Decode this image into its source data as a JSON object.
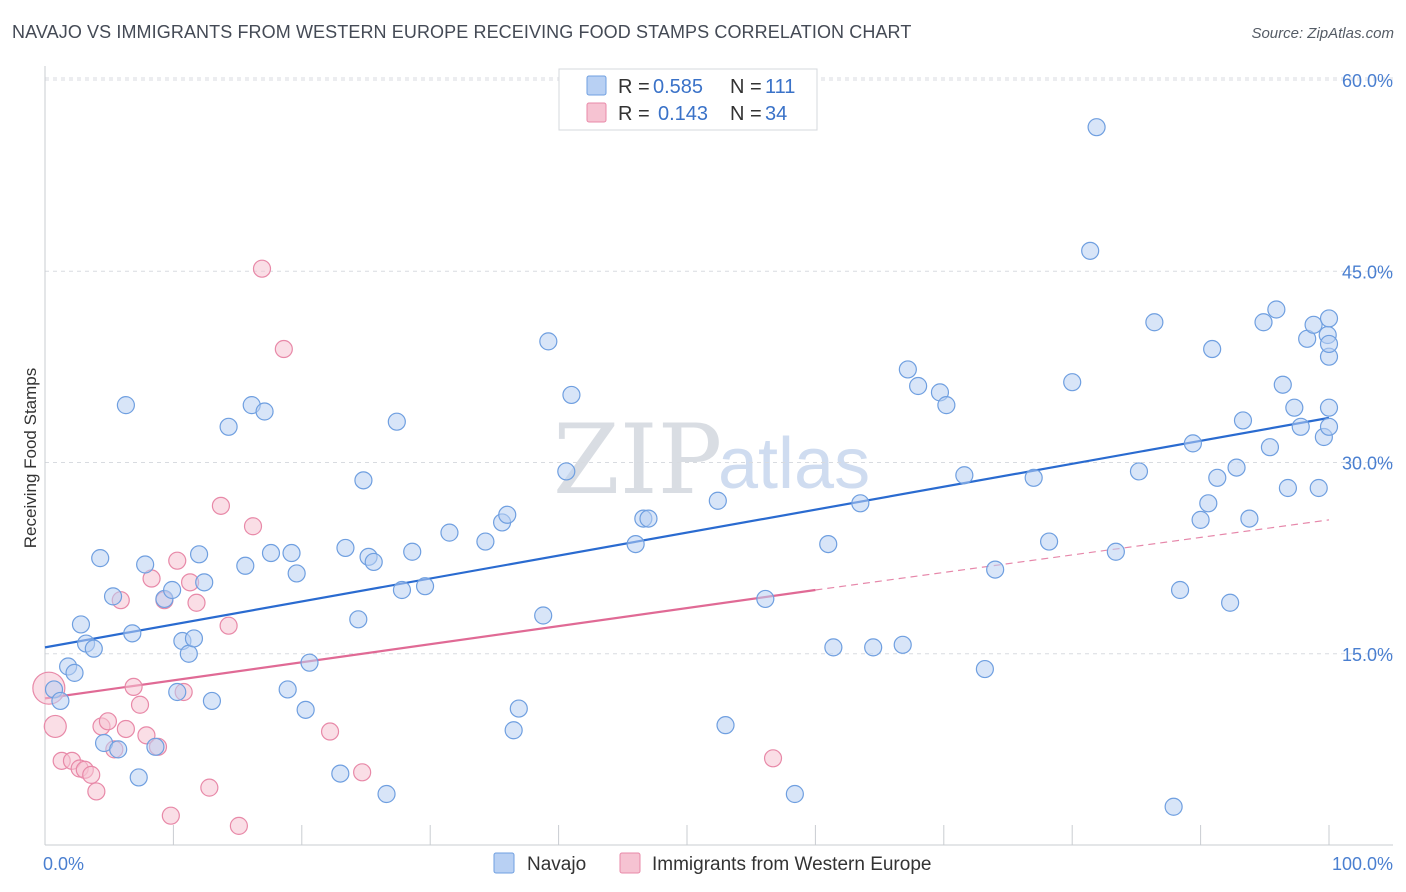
{
  "title": "NAVAJO VS IMMIGRANTS FROM WESTERN EUROPE RECEIVING FOOD STAMPS CORRELATION CHART",
  "source": "Source: ZipAtlas.com",
  "watermark": {
    "part1": "ZIP",
    "part2": "atlas"
  },
  "colors": {
    "navajo_fill": "#b8d0f3",
    "navajo_stroke": "#6f9fe0",
    "navajo_line": "#2a6bd0",
    "immig_fill": "#f6c3d2",
    "immig_stroke": "#e889a8",
    "immig_line": "#e06a95",
    "grid": "#d8dbe0",
    "axis_label": "#4a7fd0"
  },
  "legend": {
    "rows": [
      {
        "r_label": "R = ",
        "r_value": "0.585",
        "n_label": "N = ",
        "n_value": "111"
      },
      {
        "r_label": "R = ",
        "r_value": "0.143",
        "n_label": "N = ",
        "n_value": "34"
      }
    ]
  },
  "chart_data": {
    "type": "scatter",
    "title": "NAVAJO VS IMMIGRANTS FROM WESTERN EUROPE RECEIVING FOOD STAMPS CORRELATION CHART",
    "xlabel": "",
    "ylabel": "Receiving Food Stamps",
    "xlim": [
      0,
      100
    ],
    "ylim": [
      0,
      60
    ],
    "x_tick_labels": [
      "0.0%",
      "100.0%"
    ],
    "y_ticks": [
      15,
      30,
      45,
      60
    ],
    "y_tick_labels": [
      "15.0%",
      "30.0%",
      "45.0%",
      "60.0%"
    ],
    "legend_position": "top-center",
    "series": [
      {
        "name": "Navajo",
        "r": 0.585,
        "n": 111,
        "trend": {
          "x0": 0,
          "y0": 15.5,
          "x1": 100,
          "y1": 33.5
        },
        "points": [
          [
            0.7,
            12.2
          ],
          [
            1.2,
            11.3
          ],
          [
            1.8,
            14.0
          ],
          [
            2.3,
            13.5
          ],
          [
            2.8,
            17.3
          ],
          [
            3.2,
            15.8
          ],
          [
            3.8,
            15.4
          ],
          [
            4.3,
            22.5
          ],
          [
            4.6,
            8.0
          ],
          [
            5.3,
            19.5
          ],
          [
            5.7,
            7.5
          ],
          [
            6.3,
            34.5
          ],
          [
            6.8,
            16.6
          ],
          [
            7.3,
            5.3
          ],
          [
            7.8,
            22.0
          ],
          [
            8.6,
            7.7
          ],
          [
            9.3,
            19.3
          ],
          [
            9.9,
            20.0
          ],
          [
            10.3,
            12.0
          ],
          [
            10.7,
            16.0
          ],
          [
            11.2,
            15.0
          ],
          [
            11.6,
            16.2
          ],
          [
            12.0,
            22.8
          ],
          [
            12.4,
            20.6
          ],
          [
            13.0,
            11.3
          ],
          [
            14.3,
            32.8
          ],
          [
            15.6,
            21.9
          ],
          [
            16.1,
            34.5
          ],
          [
            17.1,
            34.0
          ],
          [
            17.6,
            22.9
          ],
          [
            18.9,
            12.2
          ],
          [
            19.2,
            22.9
          ],
          [
            19.6,
            21.3
          ],
          [
            20.3,
            10.6
          ],
          [
            20.6,
            14.3
          ],
          [
            23.0,
            5.6
          ],
          [
            23.4,
            23.3
          ],
          [
            24.4,
            17.7
          ],
          [
            24.8,
            28.6
          ],
          [
            25.2,
            22.6
          ],
          [
            25.6,
            22.2
          ],
          [
            26.6,
            4.0
          ],
          [
            27.4,
            33.2
          ],
          [
            27.8,
            20.0
          ],
          [
            28.6,
            23.0
          ],
          [
            29.6,
            20.3
          ],
          [
            31.5,
            24.5
          ],
          [
            34.3,
            23.8
          ],
          [
            35.6,
            25.3
          ],
          [
            36.0,
            25.9
          ],
          [
            36.5,
            9.0
          ],
          [
            36.9,
            10.7
          ],
          [
            38.8,
            18.0
          ],
          [
            39.2,
            39.5
          ],
          [
            40.6,
            29.3
          ],
          [
            41.0,
            35.3
          ],
          [
            46.0,
            23.6
          ],
          [
            46.6,
            25.6
          ],
          [
            47.0,
            25.6
          ],
          [
            52.4,
            27.0
          ],
          [
            53.0,
            9.4
          ],
          [
            56.1,
            19.3
          ],
          [
            58.4,
            4.0
          ],
          [
            61.0,
            23.6
          ],
          [
            61.4,
            15.5
          ],
          [
            63.5,
            26.8
          ],
          [
            64.5,
            15.5
          ],
          [
            66.8,
            15.7
          ],
          [
            67.2,
            37.3
          ],
          [
            68.0,
            36.0
          ],
          [
            69.7,
            35.5
          ],
          [
            70.2,
            34.5
          ],
          [
            71.6,
            29.0
          ],
          [
            73.2,
            13.8
          ],
          [
            74.0,
            21.6
          ],
          [
            77.0,
            28.8
          ],
          [
            78.2,
            23.8
          ],
          [
            80.0,
            36.3
          ],
          [
            81.4,
            46.6
          ],
          [
            81.9,
            56.3
          ],
          [
            83.4,
            23.0
          ],
          [
            85.2,
            29.3
          ],
          [
            86.4,
            41.0
          ],
          [
            87.9,
            3.0
          ],
          [
            88.4,
            20.0
          ],
          [
            89.4,
            31.5
          ],
          [
            90.0,
            25.5
          ],
          [
            90.6,
            26.8
          ],
          [
            90.9,
            38.9
          ],
          [
            91.3,
            28.8
          ],
          [
            92.3,
            19.0
          ],
          [
            92.8,
            29.6
          ],
          [
            93.3,
            33.3
          ],
          [
            93.8,
            25.6
          ],
          [
            94.9,
            41.0
          ],
          [
            95.4,
            31.2
          ],
          [
            95.9,
            42.0
          ],
          [
            96.4,
            36.1
          ],
          [
            96.8,
            28.0
          ],
          [
            97.3,
            34.3
          ],
          [
            97.8,
            32.8
          ],
          [
            98.3,
            39.7
          ],
          [
            98.8,
            40.8
          ],
          [
            99.2,
            28.0
          ],
          [
            99.6,
            32.0
          ],
          [
            99.9,
            40.0
          ],
          [
            100.4,
            38.3
          ],
          [
            100.9,
            39.3
          ],
          [
            101.4,
            34.3
          ],
          [
            101.8,
            32.8
          ],
          [
            102.4,
            41.3
          ]
        ]
      },
      {
        "name": "Immigrants from Western Europe",
        "r": 0.143,
        "n": 34,
        "trend": {
          "x0": 0,
          "y0": 11.5,
          "x1": 60,
          "y1": 20.0,
          "dash_x1": 100,
          "dash_y1": 25.5
        },
        "points": [
          [
            0.3,
            12.3
          ],
          [
            0.8,
            9.3
          ],
          [
            1.3,
            6.6
          ],
          [
            2.1,
            6.6
          ],
          [
            2.7,
            6.0
          ],
          [
            3.1,
            5.9
          ],
          [
            3.6,
            5.5
          ],
          [
            4.0,
            4.2
          ],
          [
            4.4,
            9.3
          ],
          [
            4.9,
            9.7
          ],
          [
            5.4,
            7.5
          ],
          [
            5.9,
            19.2
          ],
          [
            6.3,
            9.1
          ],
          [
            6.9,
            12.4
          ],
          [
            7.4,
            11.0
          ],
          [
            7.9,
            8.6
          ],
          [
            8.3,
            20.9
          ],
          [
            8.8,
            7.7
          ],
          [
            9.3,
            19.2
          ],
          [
            9.8,
            2.3
          ],
          [
            10.3,
            22.3
          ],
          [
            10.8,
            12.0
          ],
          [
            11.3,
            20.6
          ],
          [
            11.8,
            19.0
          ],
          [
            12.8,
            4.5
          ],
          [
            13.7,
            26.6
          ],
          [
            14.3,
            17.2
          ],
          [
            15.1,
            1.5
          ],
          [
            16.2,
            25.0
          ],
          [
            16.9,
            45.2
          ],
          [
            18.6,
            38.9
          ],
          [
            22.2,
            8.9
          ],
          [
            24.7,
            5.7
          ],
          [
            56.7,
            6.8
          ]
        ]
      }
    ]
  },
  "bottom_legend": {
    "items": [
      "Navajo",
      "Immigrants from Western Europe"
    ]
  }
}
